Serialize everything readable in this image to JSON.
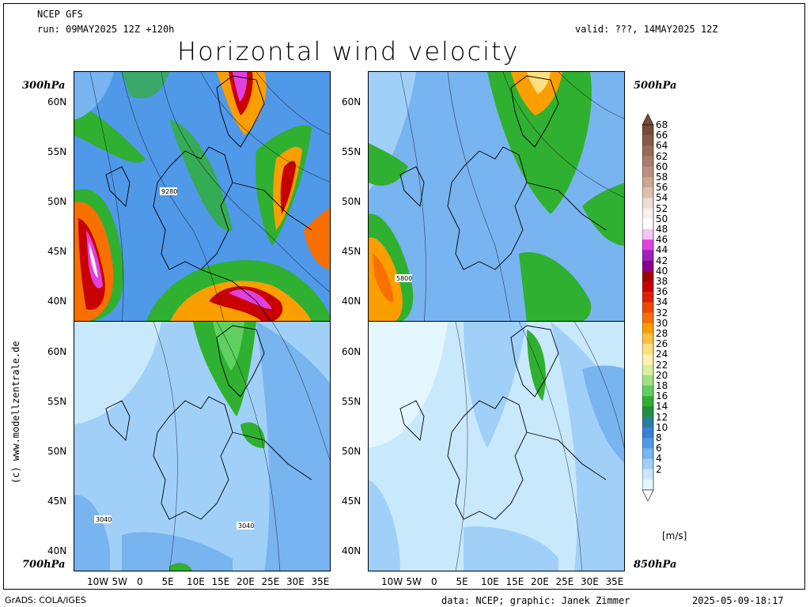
{
  "header": {
    "model": "NCEP GFS",
    "run": "run: 09MAY2025 12Z +120h",
    "valid": "valid: ???, 14MAY2025 12Z",
    "title": "Horizontal wind velocity"
  },
  "levels": {
    "top_left": "300hPa",
    "top_right": "500hPa",
    "bottom_left": "700hPa",
    "bottom_right": "850hPa"
  },
  "contour_labels": {
    "p300": "9280",
    "p500": "5800",
    "p700a": "3040",
    "p700b": "3040"
  },
  "lat_labels": [
    "60N",
    "55N",
    "50N",
    "45N",
    "40N"
  ],
  "lon_labels": [
    "10W",
    "5W",
    "0",
    "5E",
    "10E",
    "15E",
    "20E",
    "25E",
    "30E",
    "35E"
  ],
  "colorbar": {
    "unit": "[m/s]",
    "ticks": [
      "68",
      "66",
      "64",
      "62",
      "60",
      "58",
      "56",
      "54",
      "52",
      "50",
      "48",
      "46",
      "44",
      "42",
      "40",
      "38",
      "36",
      "34",
      "32",
      "30",
      "28",
      "26",
      "24",
      "22",
      "20",
      "18",
      "16",
      "14",
      "12",
      "10",
      "8",
      "6",
      "4",
      "2"
    ],
    "colors": [
      "#7a4a3a",
      "#8a5a4a",
      "#9a6a5a",
      "#ab7d6d",
      "#bc9080",
      "#cca595",
      "#ddbfb2",
      "#ecdcd6",
      "#f8f0ee",
      "#ffffff",
      "#f7c4f7",
      "#e040e0",
      "#a020c0",
      "#8a0090",
      "#a00000",
      "#c80000",
      "#e02000",
      "#f04800",
      "#f77000",
      "#fb9e00",
      "#fcc040",
      "#fde080",
      "#fef0b0",
      "#d8f0a0",
      "#a0e080",
      "#60d060",
      "#30b030",
      "#209040",
      "#2880a0",
      "#3a80d8",
      "#5098e8",
      "#78b4f0",
      "#a0d0f8",
      "#c8e8fc",
      "#e4f6ff"
    ]
  },
  "footer": {
    "left": "GrADS: COLA/IGES",
    "credit": "data: NCEP; graphic: Janek Zimmer",
    "timestamp": "2025-05-09-18:17"
  },
  "watermark": "(c) www.modellzentrale.de"
}
